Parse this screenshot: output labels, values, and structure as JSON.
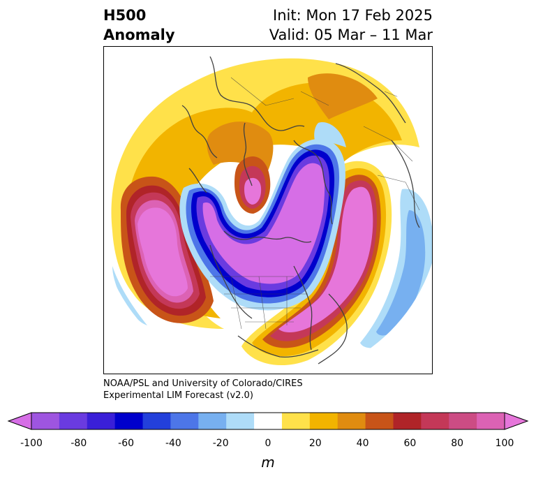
{
  "header": {
    "title_line1": "H500",
    "title_line2": "Anomaly",
    "init": "Init: Mon 17 Feb 2025",
    "valid": "Valid: 05 Mar – 11 Mar"
  },
  "credit": {
    "line1": "NOAA/PSL and University of Colorado/CIRES",
    "line2": "Experimental LIM Forecast (v2.0)"
  },
  "colorbar": {
    "unit": "m",
    "ticks": [
      "-100",
      "-80",
      "-60",
      "-40",
      "-20",
      "0",
      "20",
      "40",
      "60",
      "80",
      "100"
    ],
    "colors": [
      "#d66ee6",
      "#9e55e0",
      "#6a3be0",
      "#3a1fd8",
      "#0000cc",
      "#2340db",
      "#4d76e8",
      "#77b0f0",
      "#aedcf8",
      "#ffffff",
      "#ffe14a",
      "#f2b400",
      "#e08c10",
      "#c85418",
      "#b02428",
      "#c43858",
      "#cc4c84",
      "#dc62b4",
      "#e676da"
    ]
  }
}
